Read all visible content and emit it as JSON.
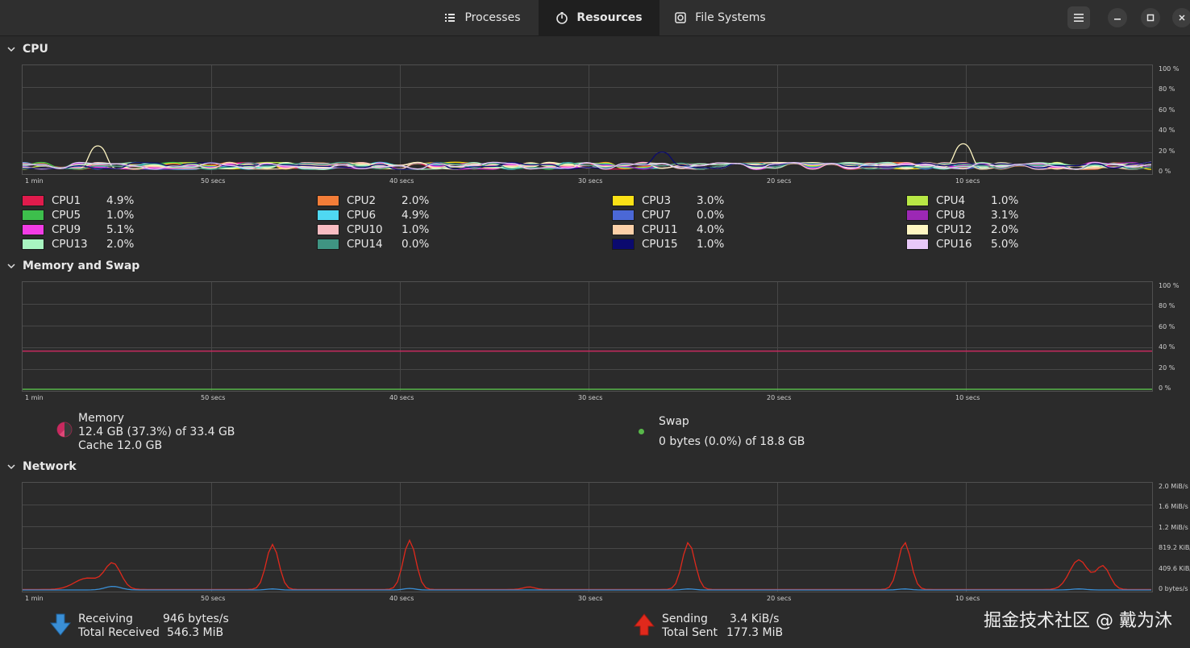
{
  "tabs": [
    {
      "label": "Processes",
      "icon": "list-icon"
    },
    {
      "label": "Resources",
      "icon": "gauge-icon"
    },
    {
      "label": "File Systems",
      "icon": "disk-icon"
    }
  ],
  "window_buttons": [
    "menu-icon",
    "minimize-icon",
    "maximize-icon",
    "close-icon"
  ],
  "cpu": {
    "title": "CPU",
    "y_ticks": [
      "100 %",
      "80 %",
      "60 %",
      "40 %",
      "20 %",
      "0 %"
    ],
    "x_ticks": [
      "1 min",
      "50 secs",
      "40 secs",
      "30 secs",
      "20 secs",
      "10 secs"
    ],
    "cores": [
      {
        "name": "CPU1",
        "value": "4.9%",
        "color": "#e01b4c"
      },
      {
        "name": "CPU2",
        "value": "2.0%",
        "color": "#f37d38"
      },
      {
        "name": "CPU3",
        "value": "3.0%",
        "color": "#fbe116"
      },
      {
        "name": "CPU4",
        "value": "1.0%",
        "color": "#b8e845"
      },
      {
        "name": "CPU5",
        "value": "1.0%",
        "color": "#3dbf4c"
      },
      {
        "name": "CPU6",
        "value": "4.9%",
        "color": "#4fd8f2"
      },
      {
        "name": "CPU7",
        "value": "0.0%",
        "color": "#4b68d6"
      },
      {
        "name": "CPU8",
        "value": "3.1%",
        "color": "#9c28b5"
      },
      {
        "name": "CPU9",
        "value": "5.1%",
        "color": "#f23ce5"
      },
      {
        "name": "CPU10",
        "value": "1.0%",
        "color": "#f8bcc2"
      },
      {
        "name": "CPU11",
        "value": "4.0%",
        "color": "#fcd0a8"
      },
      {
        "name": "CPU12",
        "value": "2.0%",
        "color": "#fff6c2"
      },
      {
        "name": "CPU13",
        "value": "2.0%",
        "color": "#a8f5c0"
      },
      {
        "name": "CPU14",
        "value": "0.0%",
        "color": "#3f9482"
      },
      {
        "name": "CPU15",
        "value": "1.0%",
        "color": "#0b0a6e"
      },
      {
        "name": "CPU16",
        "value": "5.0%",
        "color": "#e8c8f8"
      }
    ]
  },
  "memory": {
    "title": "Memory and Swap",
    "y_ticks": [
      "100 %",
      "80 %",
      "60 %",
      "40 %",
      "20 %",
      "0 %"
    ],
    "x_ticks": [
      "1 min",
      "50 secs",
      "40 secs",
      "30 secs",
      "20 secs",
      "10 secs"
    ],
    "memory_label": "Memory",
    "memory_usage": "12.4 GB (37.3%) of 33.4 GB",
    "memory_cache": "Cache 12.0 GB",
    "memory_percent": 37.3,
    "memory_color": "#c8295f",
    "swap_label": "Swap",
    "swap_usage": "0 bytes (0.0%) of 18.8 GB",
    "swap_percent": 0.0,
    "swap_color": "#58b84a"
  },
  "network": {
    "title": "Network",
    "y_ticks": [
      "2.0 MiB/s",
      "1.6 MiB/s",
      "1.2 MiB/s",
      "819.2 KiB/s",
      "409.6 KiB/s",
      "0 bytes/s"
    ],
    "x_ticks": [
      "1 min",
      "50 secs",
      "40 secs",
      "30 secs",
      "20 secs",
      "10 secs"
    ],
    "receiving_label": "Receiving",
    "receiving_value": "946 bytes/s",
    "total_received_label": "Total Received",
    "total_received_value": "546.3 MiB",
    "sending_label": "Sending",
    "sending_value": "3.4 KiB/s",
    "total_sent_label": "Total Sent",
    "total_sent_value": "177.3 MiB",
    "receiving_color": "#3a8fd6",
    "sending_color": "#e0291c"
  },
  "watermark": "掘金技术社区 @ 戴为沐"
}
